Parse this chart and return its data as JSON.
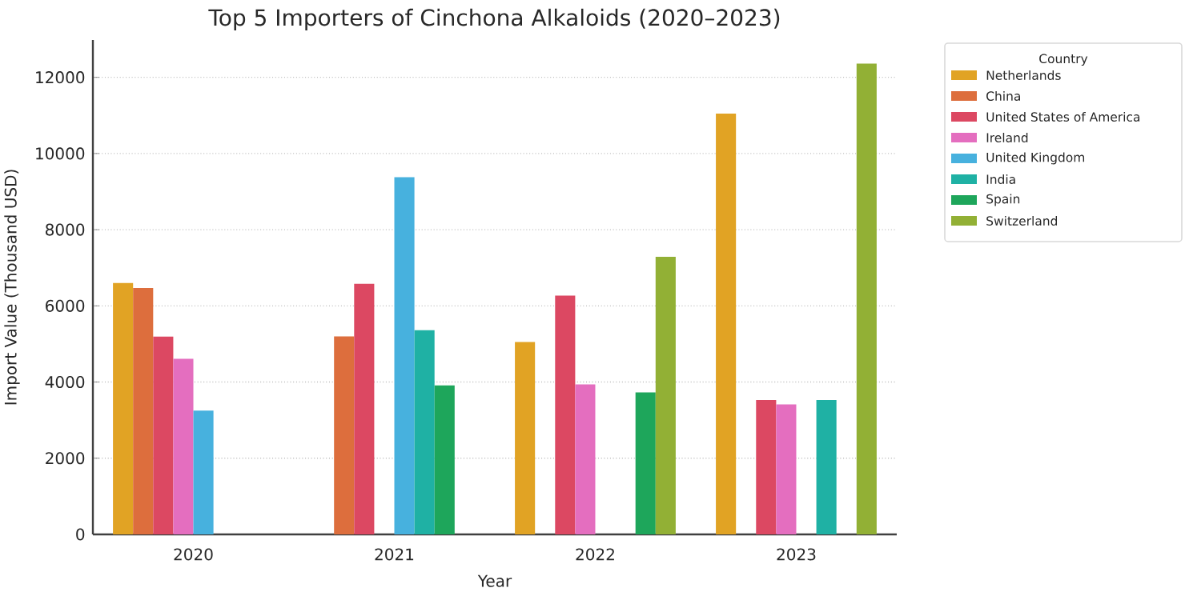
{
  "chart_data": {
    "type": "bar",
    "title": "Top 5 Importers of Cinchona Alkaloids (2020–2023)",
    "xlabel": "Year",
    "ylabel": "Import Value (Thousand USD)",
    "legend_title": "Country",
    "categories": [
      "2020",
      "2021",
      "2022",
      "2023"
    ],
    "series": [
      {
        "name": "Netherlands",
        "color": "#e1a324",
        "values": [
          6600,
          null,
          5050,
          11050
        ]
      },
      {
        "name": "China",
        "color": "#dd6e3d",
        "values": [
          6470,
          5200,
          null,
          null
        ]
      },
      {
        "name": "United States of America",
        "color": "#dc4862",
        "values": [
          5190,
          6580,
          6270,
          3530
        ]
      },
      {
        "name": "Ireland",
        "color": "#e46ebf",
        "values": [
          4610,
          null,
          3940,
          3410
        ]
      },
      {
        "name": "United Kingdom",
        "color": "#47b1de",
        "values": [
          3250,
          9380,
          null,
          null
        ]
      },
      {
        "name": "India",
        "color": "#1fb1a4",
        "values": [
          null,
          5360,
          null,
          3530
        ]
      },
      {
        "name": "Spain",
        "color": "#1ea65b",
        "values": [
          null,
          3910,
          3730,
          null
        ]
      },
      {
        "name": "Switzerland",
        "color": "#92b035",
        "values": [
          null,
          null,
          7290,
          12360
        ]
      }
    ],
    "ylim": [
      0,
      12980
    ],
    "yticks": [
      0,
      2000,
      4000,
      6000,
      8000,
      10000,
      12000
    ],
    "grid": "y",
    "legend": "right"
  }
}
